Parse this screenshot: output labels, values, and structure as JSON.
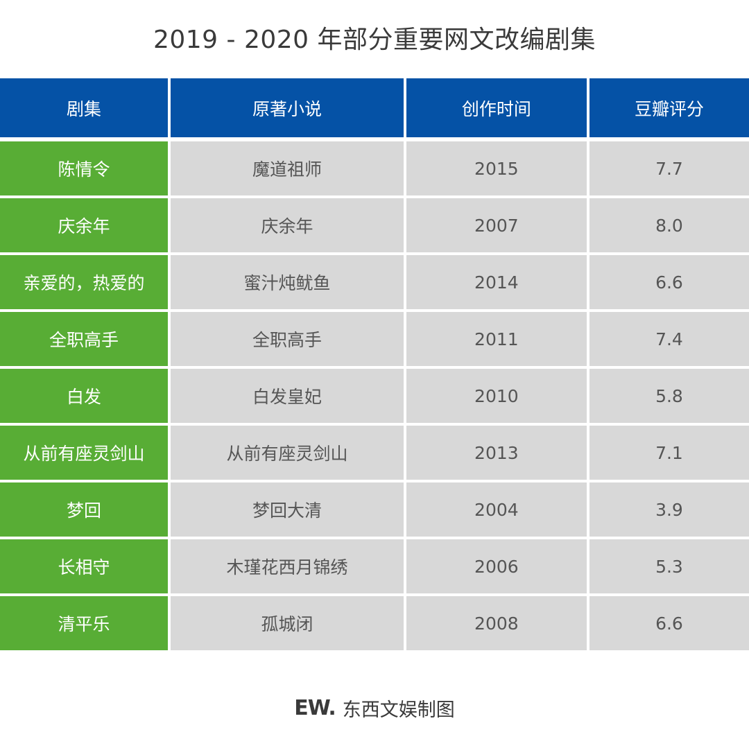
{
  "title": "2019 - 2020 年部分重要网文改编剧集",
  "chart_data": {
    "type": "table",
    "title": "2019 - 2020 年部分重要网文改编剧集",
    "columns": [
      "剧集",
      "原著小说",
      "创作时间",
      "豆瓣评分"
    ],
    "rows": [
      [
        "陈情令",
        "魔道祖师",
        "2015",
        "7.7"
      ],
      [
        "庆余年",
        "庆余年",
        "2007",
        "8.0"
      ],
      [
        "亲爱的，热爱的",
        "蜜汁炖鱿鱼",
        "2014",
        "6.6"
      ],
      [
        "全职高手",
        "全职高手",
        "2011",
        "7.4"
      ],
      [
        "白发",
        "白发皇妃",
        "2010",
        "5.8"
      ],
      [
        "从前有座灵剑山",
        "从前有座灵剑山",
        "2013",
        "7.1"
      ],
      [
        "梦回",
        "梦回大清",
        "2004",
        "3.9"
      ],
      [
        "长相守",
        "木瑾花西月锦绣",
        "2006",
        "5.3"
      ],
      [
        "清平乐",
        "孤城闭",
        "2008",
        "6.6"
      ]
    ]
  },
  "colors": {
    "header_bg": "#0552a6",
    "first_col_bg": "#58ad35",
    "cell_bg": "#d8d8d8"
  },
  "footer": {
    "logo": "EW.",
    "credit": "东西文娱制图"
  }
}
